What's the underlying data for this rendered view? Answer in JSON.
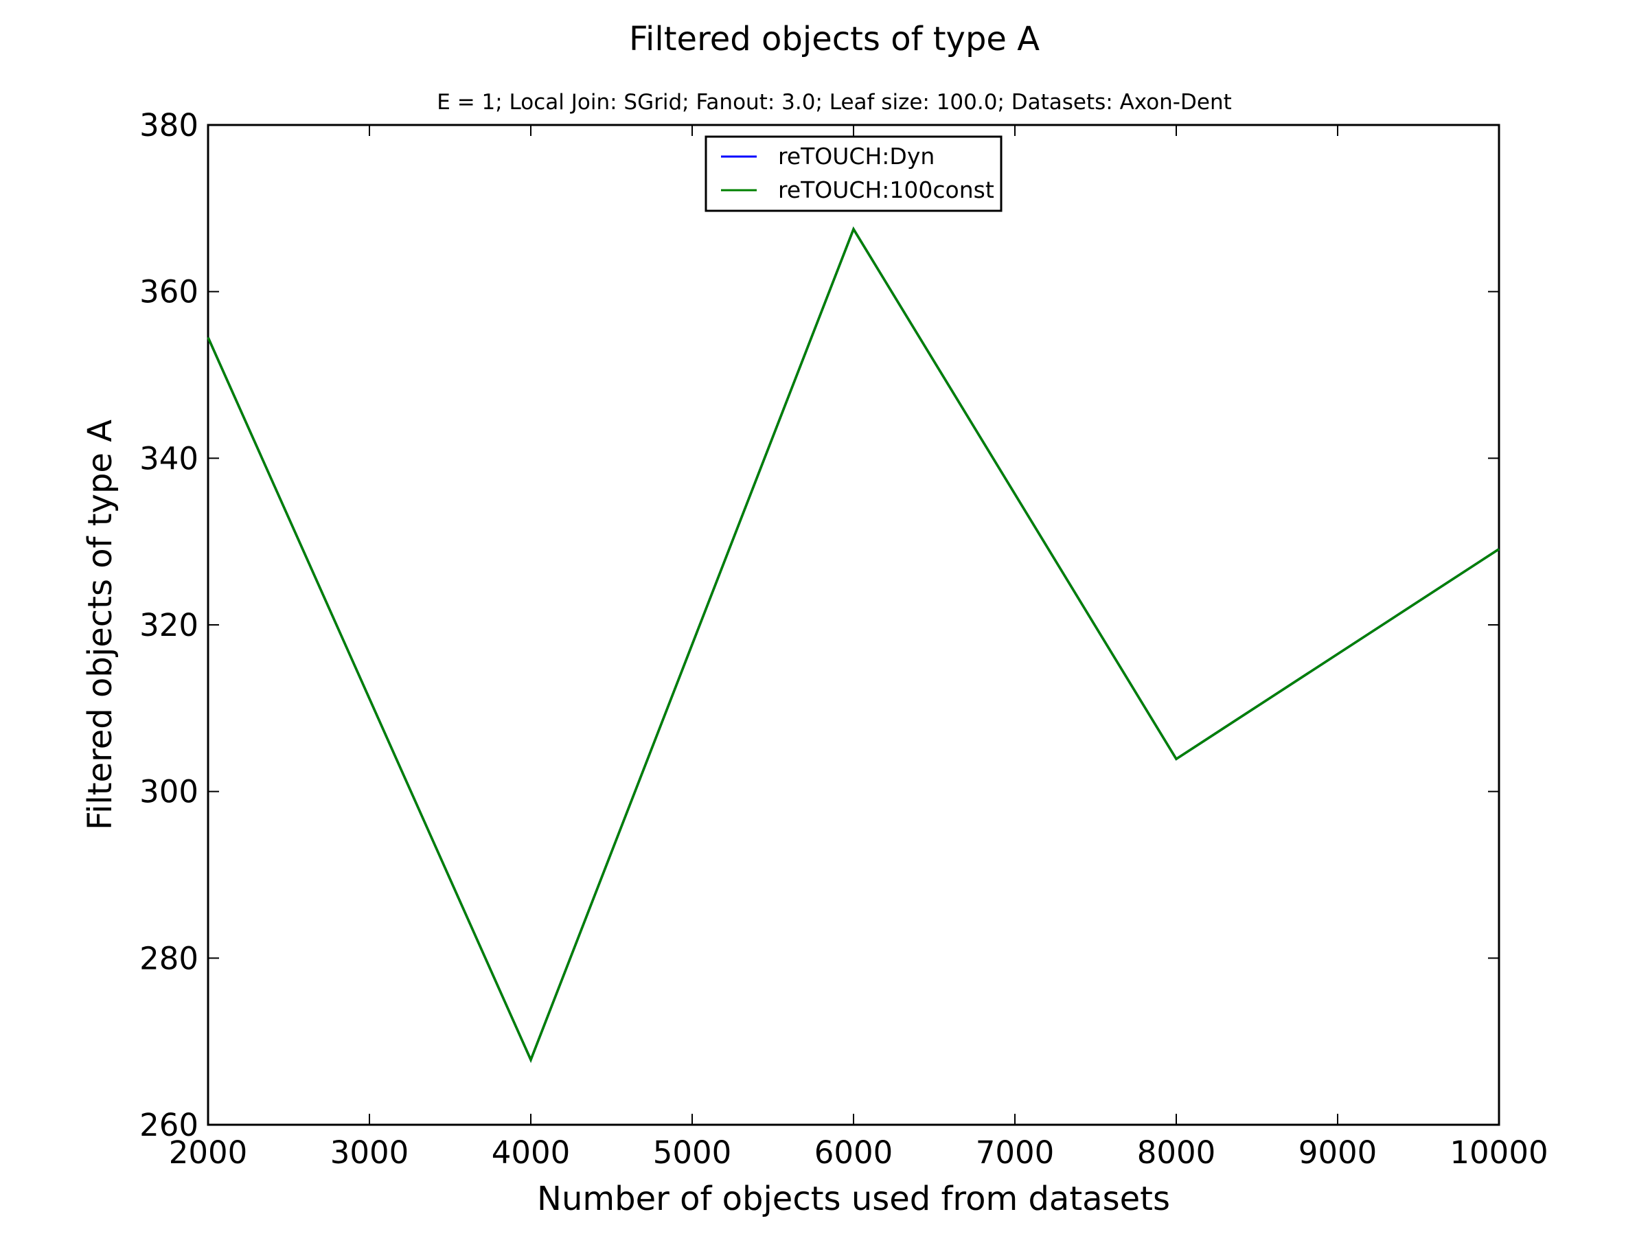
{
  "chart_data": {
    "type": "line",
    "title": "Filtered objects of type A",
    "subtitle": "E = 1; Local Join: SGrid; Fanout: 3.0; Leaf size: 100.0; Datasets: Axon-Dent",
    "xlabel": "Number of objects used from datasets",
    "ylabel": "Filtered objects of type A",
    "xlim": [
      2000,
      10000
    ],
    "ylim": [
      260,
      380
    ],
    "xticks": [
      "2000",
      "3000",
      "4000",
      "5000",
      "6000",
      "7000",
      "8000",
      "9000",
      "10000"
    ],
    "yticks": [
      "260",
      "280",
      "300",
      "320",
      "340",
      "360",
      "380"
    ],
    "x": [
      2000,
      4000,
      6000,
      8000,
      10000
    ],
    "series": [
      {
        "name": "reTOUCH:Dyn",
        "color": "#0000ff",
        "values": [
          354.5,
          267.8,
          367.5,
          303.9,
          329.1
        ]
      },
      {
        "name": "reTOUCH:100const",
        "color": "#008000",
        "values": [
          354.5,
          267.8,
          367.5,
          303.9,
          329.1
        ]
      }
    ],
    "grid": false,
    "legend_position": "top-center"
  }
}
